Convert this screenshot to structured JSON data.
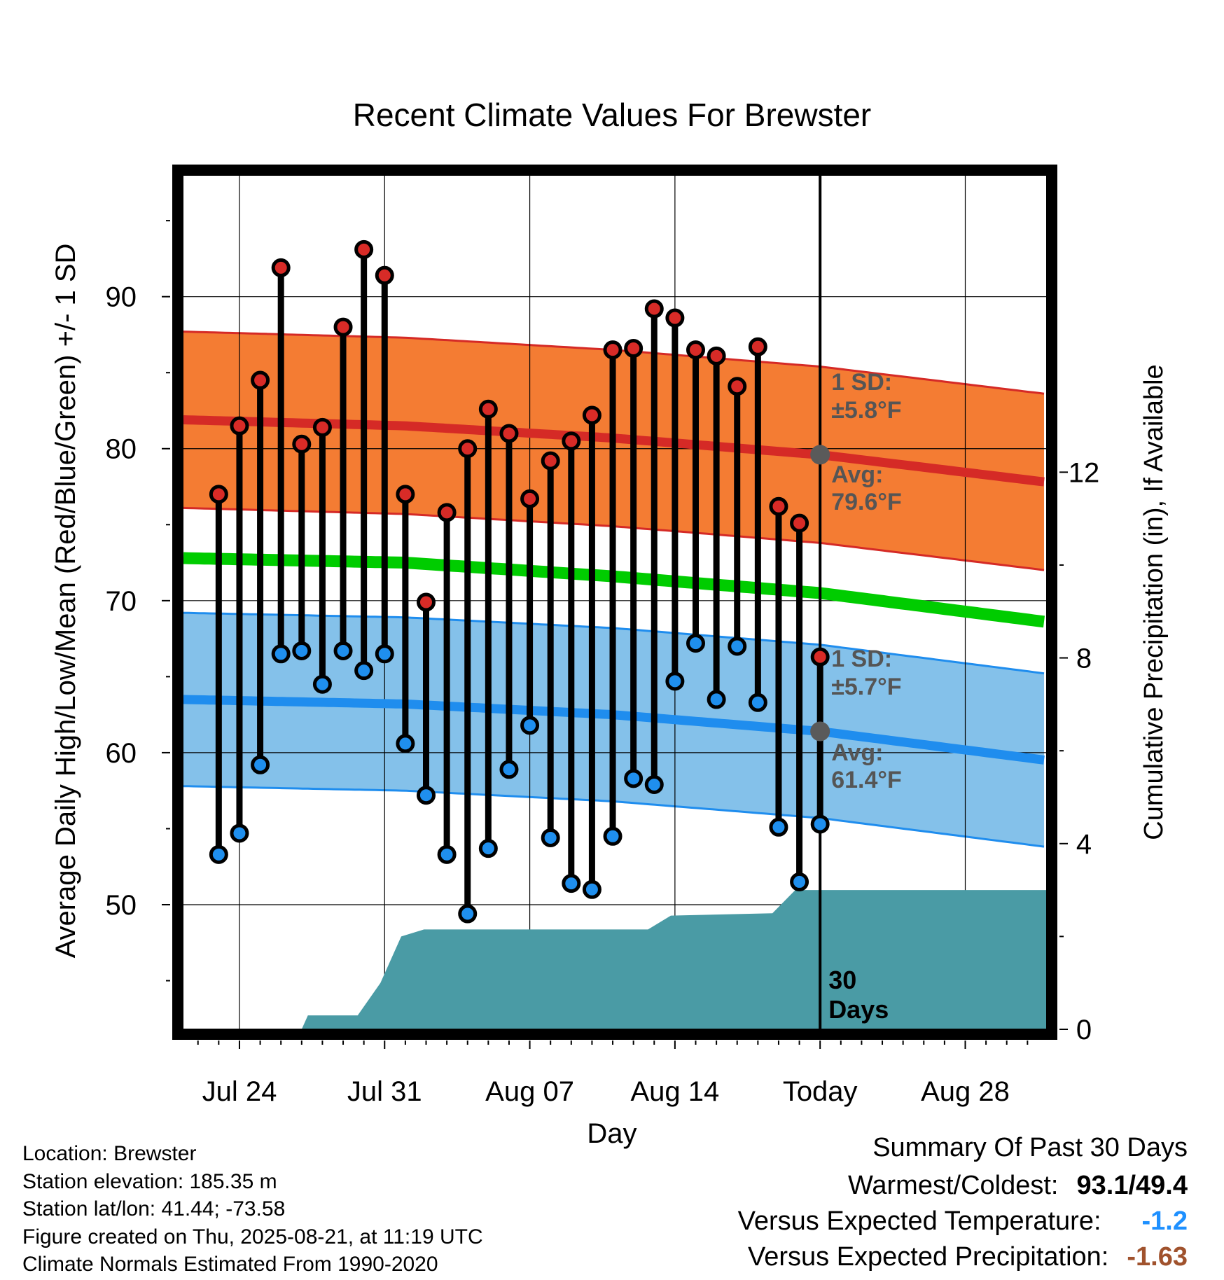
{
  "chart_data": {
    "type": "line",
    "title": "Recent Climate Values For Brewster",
    "xlabel": "Day",
    "ylabel": "Average Daily High/Low/Mean (Red/Blue/Green) +/- 1 SD",
    "y2label": "Cumulative Precipitation (in), If Available",
    "ylim": [
      41.8,
      98
    ],
    "y2lim": [
      0,
      18.4
    ],
    "y_ticks": [
      50,
      60,
      70,
      80,
      90
    ],
    "y2_ticks": [
      0,
      4,
      8,
      12
    ],
    "x_tick_labels": [
      "Jul 24",
      "Jul 31",
      "Aug 07",
      "Aug 14",
      "Today",
      "Aug 28"
    ],
    "x_tick_days": [
      2,
      9,
      16,
      23,
      30,
      37
    ],
    "x_range_days": [
      -0.7,
      40.9
    ],
    "today_day": 30,
    "today_label": [
      "30",
      "Days"
    ],
    "grid": true,
    "observed": {
      "days": [
        1,
        2,
        3,
        4,
        5,
        6,
        7,
        8,
        9,
        10,
        11,
        12,
        13,
        14,
        15,
        16,
        17,
        18,
        19,
        20,
        21,
        22,
        23,
        24,
        25,
        26,
        27,
        28,
        29,
        30
      ],
      "high": [
        77.0,
        81.5,
        84.5,
        91.9,
        80.3,
        81.4,
        88.0,
        93.1,
        91.4,
        77.0,
        69.9,
        75.8,
        80.0,
        82.6,
        81.0,
        76.7,
        79.2,
        80.5,
        82.2,
        86.5,
        86.6,
        89.2,
        88.6,
        86.5,
        86.1,
        84.1,
        86.7,
        76.2,
        75.1,
        66.3
      ],
      "low": [
        53.3,
        54.7,
        59.2,
        66.5,
        66.7,
        64.5,
        66.7,
        65.4,
        66.5,
        60.6,
        57.2,
        53.3,
        49.4,
        53.7,
        58.9,
        61.8,
        54.4,
        51.4,
        51.0,
        54.5,
        58.3,
        57.9,
        64.7,
        67.2,
        63.5,
        67.0,
        63.3,
        55.1,
        51.5,
        55.3
      ]
    },
    "normals": {
      "days": [
        -0.7,
        10,
        20,
        30,
        40.9
      ],
      "avg_high": [
        81.9,
        81.5,
        80.7,
        79.6,
        77.8
      ],
      "avg_low": [
        63.5,
        63.2,
        62.5,
        61.4,
        59.5
      ],
      "avg_mean": [
        72.8,
        72.5,
        71.6,
        70.5,
        68.6
      ],
      "high_sd": 5.8,
      "low_sd": 5.7
    },
    "precip_cumulative": {
      "days": [
        -0.7,
        5.0,
        5.3,
        7.7,
        8.8,
        9.8,
        10.9,
        21.7,
        22.8,
        27.7,
        28.8,
        40.9
      ],
      "values": [
        0.0,
        0.0,
        0.3,
        0.3,
        1.0,
        2.0,
        2.15,
        2.15,
        2.45,
        2.5,
        3.0,
        3.0
      ]
    },
    "annotations": {
      "high": {
        "sd_title": "1 SD:",
        "sd_value": "±5.8°F",
        "avg_title": "Avg:",
        "avg_value": "79.6°F"
      },
      "low": {
        "sd_title": "1 SD:",
        "sd_value": "±5.7°F",
        "avg_title": "Avg:",
        "avg_value": "61.4°F"
      }
    },
    "colors": {
      "high_band": "#f47c33",
      "high_line": "#d52a26",
      "low_band": "#84c1ea",
      "low_line": "#1f8dee",
      "mean_line": "#00cc00",
      "precip": "#4a9ba5",
      "high_marker": "#d82b27",
      "low_marker": "#1f8fee",
      "annotation": "#555555",
      "expected_temp": "#1e90ff",
      "expected_precip": "#a0522d"
    }
  },
  "info": {
    "location": "Location: Brewster",
    "elevation": "Station elevation: 185.35 m",
    "latlon": "Station lat/lon: 41.44; -73.58",
    "created": "Figure created on Thu, 2025-08-21, at 11:19 UTC",
    "normals": "Climate Normals Estimated From 1990-2020"
  },
  "summary": {
    "heading": "Summary Of Past 30 Days",
    "warmest_label": "Warmest/Coldest:",
    "warmest_value": "93.1",
    "coldest_value": "49.4",
    "temp_label": "Versus Expected Temperature:",
    "temp_value": "-1.2",
    "precip_label": "Versus Expected Precipitation:",
    "precip_value": "-1.63"
  }
}
